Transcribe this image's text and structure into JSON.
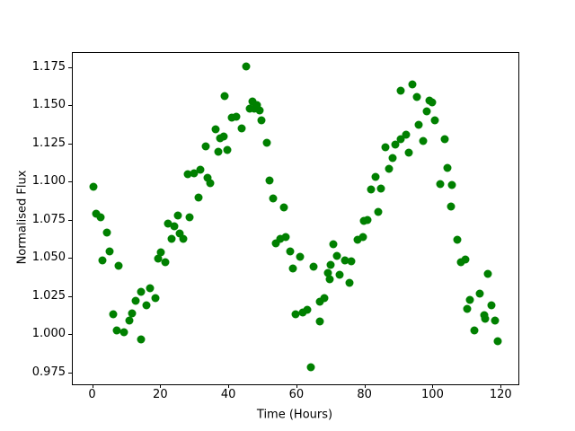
{
  "figure": {
    "xlabel": "Time (Hours)",
    "ylabel": "Normalised Flux"
  },
  "chart_data": {
    "type": "scatter",
    "title": "",
    "xlabel": "Time (Hours)",
    "ylabel": "Normalised Flux",
    "marker_color": "#008000",
    "background": "#ffffff",
    "grid": false,
    "legend": null,
    "xlim": [
      -5.95,
      124.95
    ],
    "ylim": [
      0.9678,
      1.1852
    ],
    "x_ticks": {
      "values": [
        0,
        20,
        40,
        60,
        80,
        100,
        120
      ],
      "labels": [
        "0",
        "20",
        "40",
        "60",
        "80",
        "100",
        "120"
      ]
    },
    "y_ticks": {
      "values": [
        0.975,
        1.0,
        1.025,
        1.05,
        1.075,
        1.1,
        1.125,
        1.15,
        1.175
      ],
      "labels": [
        "0.975",
        "1.000",
        "1.025",
        "1.050",
        "1.075",
        "1.100",
        "1.125",
        "1.150",
        "1.175"
      ]
    },
    "points": [
      [
        0.2,
        1.097
      ],
      [
        0.9,
        1.0795
      ],
      [
        2.3,
        1.077
      ],
      [
        2.8,
        1.0487
      ],
      [
        4.0,
        1.0672
      ],
      [
        4.8,
        1.055
      ],
      [
        6.0,
        1.0136
      ],
      [
        7.0,
        1.003
      ],
      [
        7.6,
        1.0456
      ],
      [
        9.1,
        1.0018
      ],
      [
        10.7,
        1.0096
      ],
      [
        11.5,
        1.0142
      ],
      [
        12.6,
        1.0228
      ],
      [
        14.0,
        0.9971
      ],
      [
        14.1,
        1.0285
      ],
      [
        15.8,
        1.0197
      ],
      [
        16.8,
        1.031
      ],
      [
        18.2,
        1.0245
      ],
      [
        19.2,
        1.05
      ],
      [
        19.9,
        1.054
      ],
      [
        21.3,
        1.048
      ],
      [
        21.9,
        1.0731
      ],
      [
        23.0,
        1.0632
      ],
      [
        23.9,
        1.0716
      ],
      [
        25.0,
        1.0786
      ],
      [
        25.5,
        1.0666
      ],
      [
        26.5,
        1.063
      ],
      [
        28.4,
        1.0772
      ],
      [
        27.8,
        1.1054
      ],
      [
        29.8,
        1.106
      ],
      [
        31.1,
        1.09
      ],
      [
        31.6,
        1.1084
      ],
      [
        33.1,
        1.124
      ],
      [
        33.7,
        1.103
      ],
      [
        34.4,
        1.0998
      ],
      [
        36.0,
        1.1348
      ],
      [
        36.7,
        1.1203
      ],
      [
        37.3,
        1.129
      ],
      [
        38.5,
        1.13
      ],
      [
        38.7,
        1.1565
      ],
      [
        39.5,
        1.1212
      ],
      [
        40.8,
        1.1423
      ],
      [
        42.2,
        1.1432
      ],
      [
        43.7,
        1.1355
      ],
      [
        44.9,
        1.1762
      ],
      [
        46.0,
        1.1485
      ],
      [
        46.8,
        1.1532
      ],
      [
        47.3,
        1.1482
      ],
      [
        48.2,
        1.1508
      ],
      [
        49.0,
        1.147
      ],
      [
        49.6,
        1.1408
      ],
      [
        51.0,
        1.126
      ],
      [
        51.8,
        1.1015
      ],
      [
        53.0,
        1.0897
      ],
      [
        53.8,
        1.06
      ],
      [
        55.0,
        1.063
      ],
      [
        56.2,
        1.0838
      ],
      [
        56.7,
        1.0642
      ],
      [
        57.8,
        1.055
      ],
      [
        58.7,
        1.0435
      ],
      [
        59.5,
        1.0136
      ],
      [
        60.9,
        1.0513
      ],
      [
        61.6,
        1.0146
      ],
      [
        62.8,
        1.0168
      ],
      [
        64.0,
        0.979
      ],
      [
        64.9,
        1.0451
      ],
      [
        66.6,
        1.0092
      ],
      [
        66.7,
        1.0222
      ],
      [
        67.9,
        1.024
      ],
      [
        68.9,
        1.041
      ],
      [
        69.4,
        1.0368
      ],
      [
        69.8,
        1.046
      ],
      [
        70.6,
        1.0593
      ],
      [
        71.6,
        1.0519
      ],
      [
        72.4,
        1.0396
      ],
      [
        74.1,
        1.0491
      ],
      [
        75.4,
        1.0344
      ],
      [
        75.9,
        1.0485
      ],
      [
        77.6,
        1.0628
      ],
      [
        79.3,
        1.064
      ],
      [
        79.5,
        1.075
      ],
      [
        80.7,
        1.0754
      ],
      [
        81.6,
        1.0956
      ],
      [
        83.0,
        1.104
      ],
      [
        83.8,
        1.0805
      ],
      [
        84.7,
        1.096
      ],
      [
        86.0,
        1.1231
      ],
      [
        86.9,
        1.109
      ],
      [
        88.0,
        1.1158
      ],
      [
        88.8,
        1.125
      ],
      [
        90.4,
        1.1285
      ],
      [
        92.0,
        1.1315
      ],
      [
        92.8,
        1.1197
      ],
      [
        90.3,
        1.16
      ],
      [
        93.9,
        1.1642
      ],
      [
        95.1,
        1.156
      ],
      [
        95.7,
        1.138
      ],
      [
        97.0,
        1.1272
      ],
      [
        98.1,
        1.1466
      ],
      [
        98.7,
        1.154
      ],
      [
        99.6,
        1.1525
      ],
      [
        100.5,
        1.1407
      ],
      [
        101.9,
        1.0991
      ],
      [
        103.2,
        1.1285
      ],
      [
        104.2,
        1.1097
      ],
      [
        105.1,
        1.0842
      ],
      [
        105.4,
        1.0985
      ],
      [
        107.1,
        1.0626
      ],
      [
        108.0,
        1.0478
      ],
      [
        109.3,
        1.0495
      ],
      [
        109.8,
        1.0172
      ],
      [
        110.7,
        1.023
      ],
      [
        112.0,
        1.0033
      ],
      [
        113.6,
        1.0273
      ],
      [
        114.8,
        1.013
      ],
      [
        115.3,
        1.0109
      ],
      [
        116.0,
        1.0403
      ],
      [
        117.1,
        1.0198
      ],
      [
        118.2,
        1.0098
      ],
      [
        118.9,
        0.996
      ]
    ]
  }
}
